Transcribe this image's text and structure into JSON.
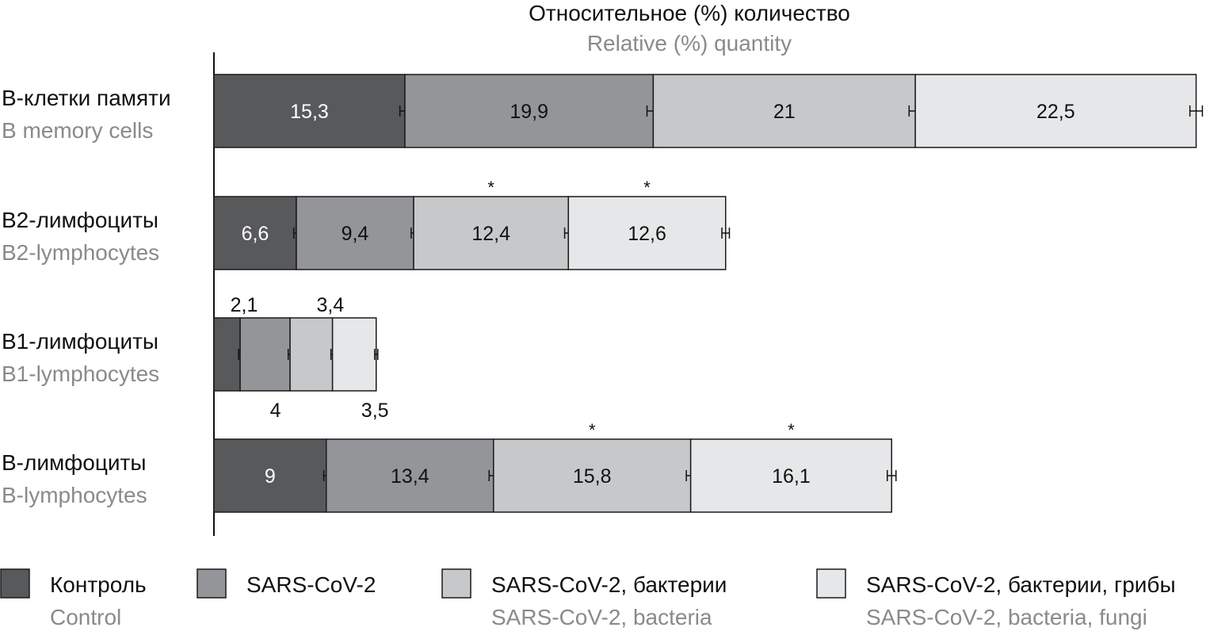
{
  "chart_data": {
    "type": "bar",
    "orientation": "horizontal-stacked",
    "title": "Относительное (%) количество",
    "title_en": "Relative (%) quantity",
    "categories": [
      {
        "ru": "В-клетки памяти",
        "en": "B memory cells"
      },
      {
        "ru": "В2-лимфоциты",
        "en": "B2-lymphocytes"
      },
      {
        "ru": "В1-лимфоциты",
        "en": "B1-lymphocytes"
      },
      {
        "ru": "В-лимфоциты",
        "en": "B-lymphocytes"
      }
    ],
    "series": [
      {
        "name": "Контроль",
        "name_en": "Control",
        "color": "#58595b",
        "values": [
          15.3,
          6.6,
          2.1,
          9
        ],
        "labels": [
          "15,3",
          "6,6",
          "2,1",
          "9"
        ],
        "errors": [
          0.4,
          0.2,
          0.1,
          0.2
        ],
        "stars": [
          false,
          false,
          false,
          false
        ]
      },
      {
        "name": "SARS-CoV-2",
        "name_en": "",
        "color": "#939598",
        "values": [
          19.9,
          9.4,
          4,
          13.4
        ],
        "labels": [
          "19,9",
          "9,4",
          "4",
          "13,4"
        ],
        "errors": [
          0.5,
          0.2,
          0.15,
          0.35
        ],
        "stars": [
          false,
          false,
          false,
          false
        ]
      },
      {
        "name": "SARS-CoV-2, бактерии",
        "name_en": "SARS-CoV-2, bacteria",
        "color": "#c7c8ca",
        "values": [
          21,
          12.4,
          3.4,
          15.8
        ],
        "labels": [
          "21",
          "12,4",
          "3,4",
          "15,8"
        ],
        "errors": [
          0.5,
          0.3,
          0.1,
          0.35
        ],
        "stars": [
          false,
          true,
          false,
          true
        ]
      },
      {
        "name": "SARS-CoV-2, бактерии, грибы",
        "name_en": "SARS-CoV-2, bacteria, fungi",
        "color": "#e6e7e8",
        "values": [
          22.5,
          12.6,
          3.5,
          16.1
        ],
        "labels": [
          "22,5",
          "12,6",
          "3,5",
          "16,1"
        ],
        "errors": [
          0.5,
          0.3,
          0.1,
          0.35
        ],
        "stars": [
          false,
          true,
          false,
          true
        ]
      }
    ],
    "star_symbol": "*",
    "xlim": [
      0,
      80
    ]
  }
}
